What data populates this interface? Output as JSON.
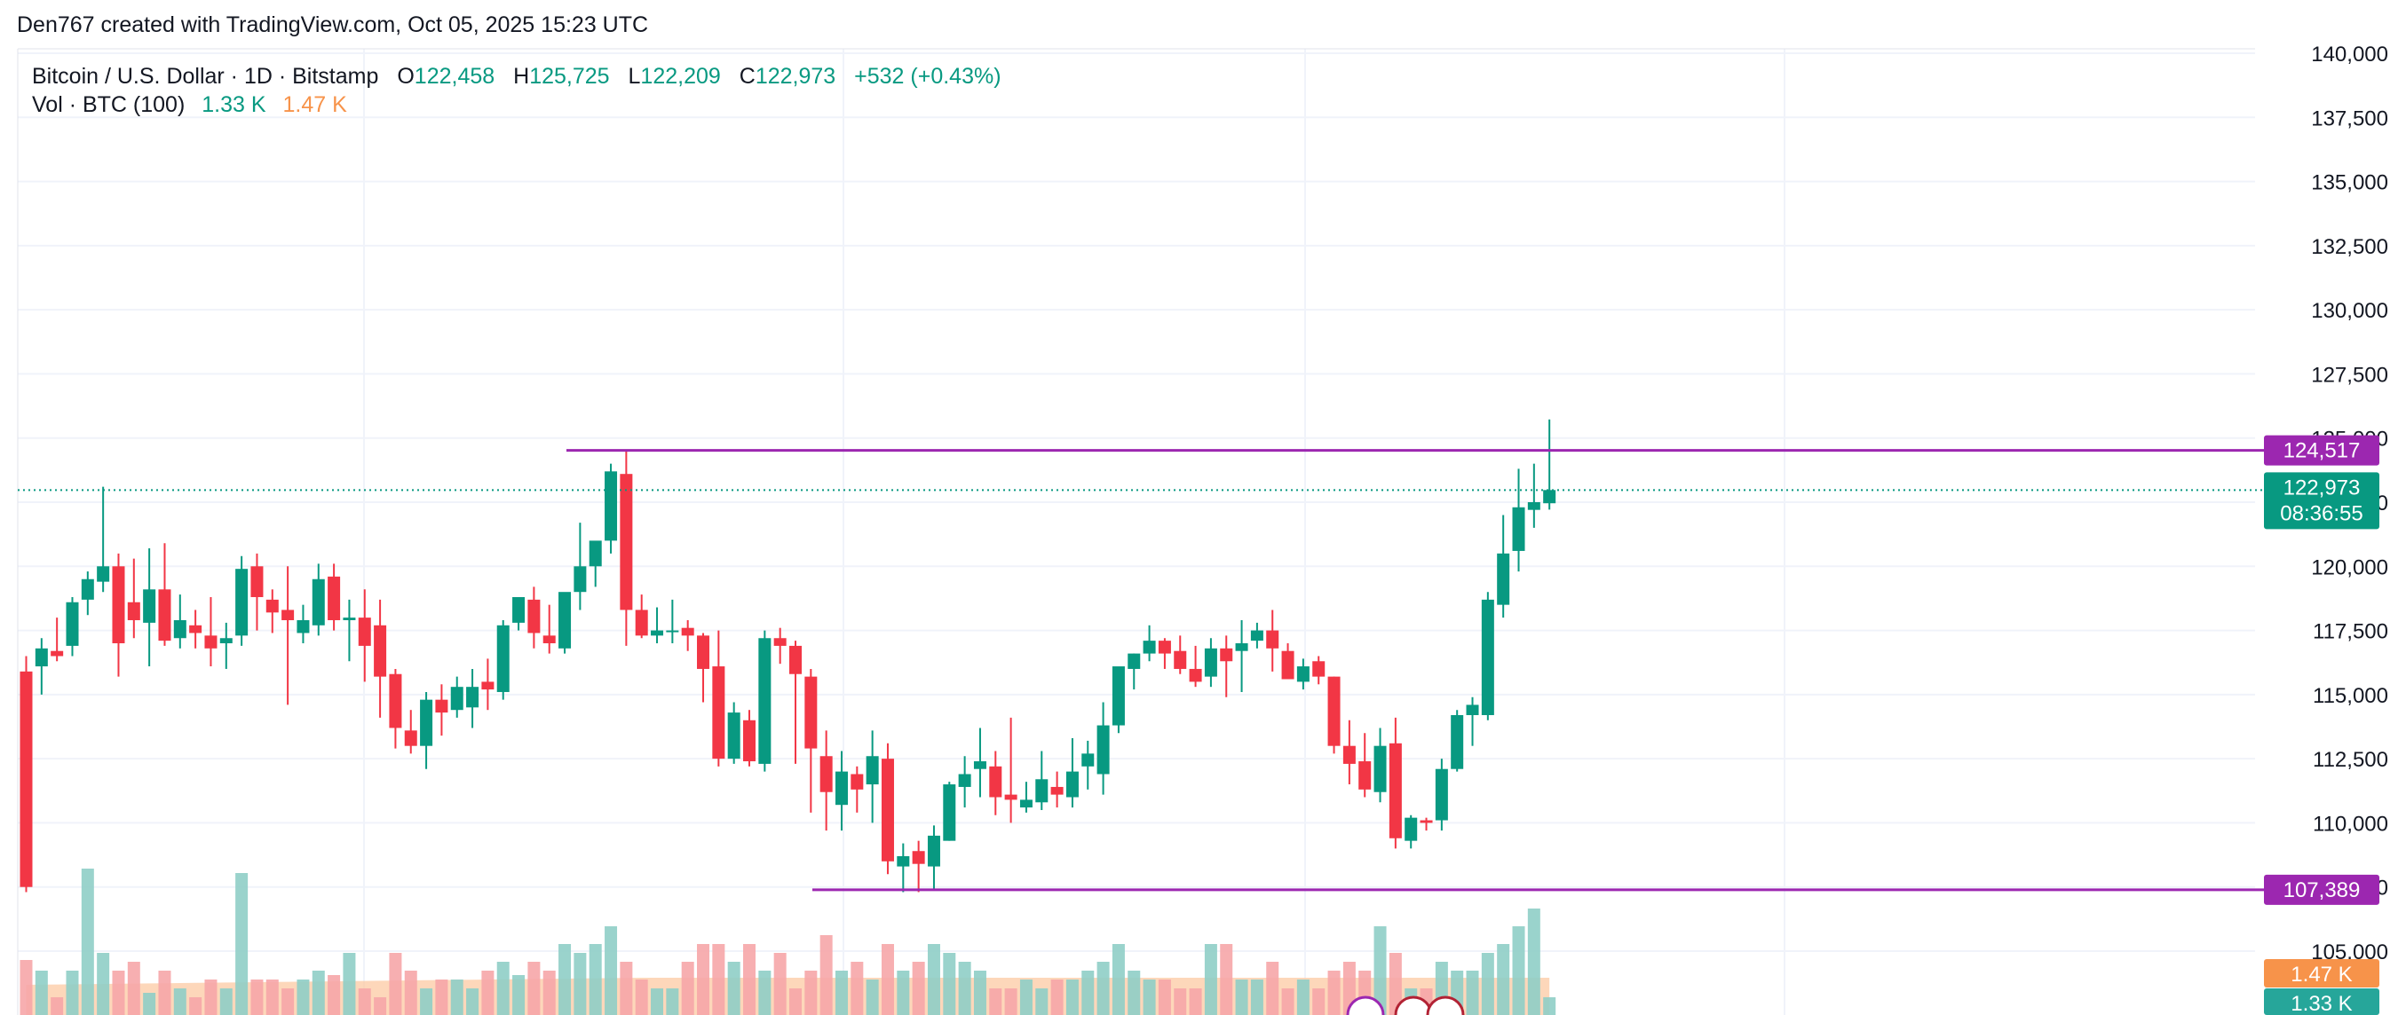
{
  "header": {
    "credit": "Den767 created with TradingView.com, Oct 05, 2025 15:23 UTC"
  },
  "legend": {
    "symbol": "Bitcoin / U.S. Dollar · 1D · Bitstamp",
    "o_label": "O",
    "o_value": "122,458",
    "h_label": "H",
    "h_value": "125,725",
    "l_label": "L",
    "l_value": "122,209",
    "c_label": "C",
    "c_value": "122,973",
    "change": "+532 (+0.43%)",
    "vol_label": "Vol · BTC (100)",
    "vol_value": "1.33 K",
    "vol_ma_value": "1.47 K"
  },
  "colors": {
    "up": "#089981",
    "down": "#f23645",
    "vol_up": "#8fcec6",
    "vol_down": "#f6a6a8",
    "vol_ma_fill": "#fcc9a3",
    "level": "#9c27b0",
    "price_badge": "#089981",
    "vol_ma_badge": "#f7934a",
    "vol_badge": "#26a69a"
  },
  "chart_data": {
    "type": "candlestick",
    "y_axis": {
      "range": [
        103000,
        141000
      ],
      "ticks": [
        105000,
        107500,
        110000,
        112500,
        115000,
        117500,
        120000,
        122500,
        125000,
        127500,
        130000,
        132500,
        135000,
        137500,
        140000
      ],
      "tick_labels": [
        "105,000",
        "107,500",
        "110,000",
        "112,500",
        "115,000",
        "117,500",
        "120,000",
        "122,500",
        "125,000",
        "127,500",
        "130,000",
        "132,500",
        "135,000",
        "137,500",
        "140,000"
      ]
    },
    "horizontal_levels": [
      {
        "value": 124517,
        "label": "124,517"
      },
      {
        "value": 107389,
        "label": "107,389"
      }
    ],
    "last_price": {
      "value": 122973,
      "label": "122,973",
      "countdown": "08:36:55"
    },
    "volume_badges": {
      "vol_ma": "1.47 K",
      "vol": "1.33 K"
    },
    "candles": [
      [
        115900,
        116500,
        107300,
        107500
      ],
      [
        116100,
        117200,
        115000,
        116800
      ],
      [
        116700,
        118000,
        116300,
        116500
      ],
      [
        116900,
        118800,
        116500,
        118600
      ],
      [
        118700,
        119800,
        118100,
        119500
      ],
      [
        119400,
        123100,
        119000,
        120000
      ],
      [
        120000,
        120500,
        115700,
        117000
      ],
      [
        118600,
        120300,
        117200,
        117900
      ],
      [
        117800,
        120700,
        116100,
        119100
      ],
      [
        119100,
        120900,
        116900,
        117100
      ],
      [
        117200,
        118900,
        116800,
        117900
      ],
      [
        117700,
        118300,
        116800,
        117400
      ],
      [
        117300,
        118800,
        116100,
        116800
      ],
      [
        117000,
        117800,
        116000,
        117200
      ],
      [
        117300,
        120400,
        116900,
        119900
      ],
      [
        120000,
        120500,
        117500,
        118800
      ],
      [
        118700,
        119100,
        117400,
        118200
      ],
      [
        118300,
        120000,
        114600,
        117900
      ],
      [
        117400,
        118500,
        117000,
        117900
      ],
      [
        117700,
        120100,
        117300,
        119500
      ],
      [
        119600,
        120100,
        117500,
        117900
      ],
      [
        117900,
        118700,
        116300,
        118000
      ],
      [
        118000,
        119100,
        115500,
        116900
      ],
      [
        117700,
        118700,
        114100,
        115700
      ],
      [
        115800,
        116000,
        112900,
        113700
      ],
      [
        113600,
        114400,
        112700,
        113000
      ],
      [
        113000,
        115100,
        112100,
        114800
      ],
      [
        114800,
        115400,
        113400,
        114300
      ],
      [
        114400,
        115700,
        114100,
        115300
      ],
      [
        114500,
        116000,
        113700,
        115300
      ],
      [
        115500,
        116400,
        114400,
        115200
      ],
      [
        115100,
        117900,
        114800,
        117700
      ],
      [
        117800,
        118800,
        117500,
        118800
      ],
      [
        118700,
        119200,
        116800,
        117400
      ],
      [
        117300,
        118500,
        116600,
        117000
      ],
      [
        116800,
        118800,
        116600,
        119000
      ],
      [
        119000,
        121700,
        118300,
        120000
      ],
      [
        120000,
        120700,
        119200,
        121000
      ],
      [
        121000,
        124000,
        120500,
        123700
      ],
      [
        123600,
        124500,
        116900,
        118300
      ],
      [
        118300,
        118900,
        117200,
        117300
      ],
      [
        117300,
        118400,
        117000,
        117500
      ],
      [
        117500,
        118700,
        117000,
        117500
      ],
      [
        117600,
        117900,
        116700,
        117300
      ],
      [
        117300,
        117400,
        114700,
        116000
      ],
      [
        116100,
        117500,
        112200,
        112500
      ],
      [
        112500,
        114700,
        112300,
        114300
      ],
      [
        114000,
        114400,
        112200,
        112400
      ],
      [
        112300,
        117500,
        112000,
        117200
      ],
      [
        117200,
        117600,
        116200,
        116900
      ],
      [
        116900,
        117100,
        112300,
        115800
      ],
      [
        115700,
        116000,
        110400,
        112900
      ],
      [
        112600,
        113600,
        109700,
        111200
      ],
      [
        110700,
        112800,
        109700,
        112000
      ],
      [
        111900,
        112200,
        110400,
        111300
      ],
      [
        111500,
        113600,
        110000,
        112600
      ],
      [
        112500,
        113100,
        108000,
        108500
      ],
      [
        108300,
        109200,
        107300,
        108700
      ],
      [
        108900,
        109300,
        107300,
        108400
      ],
      [
        108300,
        109900,
        107400,
        109500
      ],
      [
        109300,
        111600,
        109300,
        111500
      ],
      [
        111400,
        112600,
        110600,
        111900
      ],
      [
        112100,
        113700,
        111000,
        112400
      ],
      [
        112200,
        112800,
        110300,
        111000
      ],
      [
        111100,
        114100,
        110000,
        110900
      ],
      [
        110600,
        111600,
        110400,
        110900
      ],
      [
        110800,
        112800,
        110500,
        111700
      ],
      [
        111400,
        112000,
        110600,
        111100
      ],
      [
        111000,
        113300,
        110600,
        112000
      ],
      [
        112200,
        113200,
        111300,
        112700
      ],
      [
        111900,
        114700,
        111100,
        113800
      ],
      [
        113800,
        116000,
        113500,
        116100
      ],
      [
        116000,
        116600,
        115200,
        116600
      ],
      [
        116600,
        117700,
        116300,
        117100
      ],
      [
        117100,
        117200,
        116000,
        116600
      ],
      [
        116700,
        117300,
        115800,
        116000
      ],
      [
        116000,
        116900,
        115300,
        115500
      ],
      [
        115700,
        117200,
        115300,
        116800
      ],
      [
        116800,
        117300,
        114900,
        116300
      ],
      [
        116700,
        117900,
        115100,
        117000
      ],
      [
        117100,
        117800,
        116800,
        117500
      ],
      [
        117500,
        118300,
        115900,
        116800
      ],
      [
        116700,
        117000,
        115600,
        115600
      ],
      [
        115500,
        116400,
        115200,
        116100
      ],
      [
        116300,
        116500,
        115400,
        115700
      ],
      [
        115700,
        115700,
        112700,
        113000
      ],
      [
        113000,
        114000,
        111500,
        112300
      ],
      [
        112400,
        113500,
        111000,
        111300
      ],
      [
        111200,
        113700,
        110800,
        113000
      ],
      [
        113100,
        114100,
        109000,
        109400
      ],
      [
        109300,
        110300,
        109000,
        110200
      ],
      [
        110100,
        110200,
        109700,
        110000
      ],
      [
        110100,
        112500,
        109700,
        112100
      ],
      [
        112100,
        114400,
        112000,
        114200
      ],
      [
        114200,
        114900,
        113000,
        114600
      ],
      [
        114200,
        119000,
        114000,
        118700
      ],
      [
        118500,
        122000,
        118000,
        120500
      ],
      [
        120600,
        123800,
        119800,
        122300
      ],
      [
        122200,
        124000,
        121500,
        122500
      ],
      [
        122458,
        125725,
        122209,
        122973
      ]
    ],
    "volume_levels": [
      0.62,
      0.5,
      0.2,
      0.5,
      1.65,
      0.7,
      0.5,
      0.6,
      0.25,
      0.5,
      0.3,
      0.2,
      0.4,
      0.3,
      1.6,
      0.4,
      0.4,
      0.3,
      0.4,
      0.5,
      0.45,
      0.7,
      0.3,
      0.2,
      0.7,
      0.5,
      0.3,
      0.4,
      0.4,
      0.3,
      0.5,
      0.6,
      0.45,
      0.6,
      0.5,
      0.8,
      0.7,
      0.8,
      1.0,
      0.6,
      0.4,
      0.3,
      0.3,
      0.6,
      0.8,
      0.8,
      0.6,
      0.8,
      0.5,
      0.7,
      0.3,
      0.5,
      0.9,
      0.5,
      0.6,
      0.4,
      0.8,
      0.5,
      0.6,
      0.8,
      0.7,
      0.6,
      0.5,
      0.3,
      0.3,
      0.4,
      0.3,
      0.4,
      0.4,
      0.5,
      0.6,
      0.8,
      0.5,
      0.4,
      0.4,
      0.3,
      0.3,
      0.8,
      0.8,
      0.4,
      0.4,
      0.6,
      0.3,
      0.4,
      0.3,
      0.5,
      0.6,
      0.5,
      1.0,
      0.7,
      0.3,
      0.3,
      0.6,
      0.5,
      0.5,
      0.7,
      0.8,
      1.0,
      1.2,
      0.2
    ],
    "grid": true
  }
}
